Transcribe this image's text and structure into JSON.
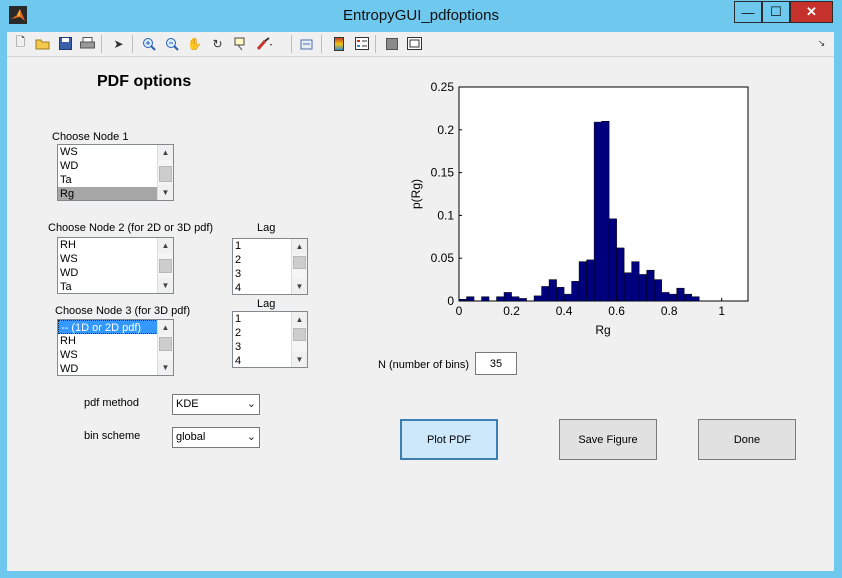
{
  "window": {
    "title": "EntropyGUI_pdfoptions",
    "minimize": "—",
    "maximize": "☐",
    "close": "✕"
  },
  "toolbar": {
    "icons": [
      "new-icon",
      "open-icon",
      "save-icon",
      "print-icon",
      "pointer-icon",
      "zoom-in-icon",
      "zoom-out-icon",
      "pan-icon",
      "rotate-icon",
      "data-cursor-icon",
      "brush-icon",
      "link-icon",
      "colorbar-icon",
      "legend-icon",
      "hide-plot-tools-icon",
      "show-plot-tools-icon",
      "dock-icon"
    ]
  },
  "panel": {
    "heading": "PDF options",
    "node1": {
      "label": "Choose Node 1",
      "items": [
        "WS",
        "WD",
        "Ta",
        "Rg"
      ],
      "selected_index": 3
    },
    "node2": {
      "label": "Choose Node  2 (for 2D or 3D pdf)",
      "items": [
        "RH",
        "WS",
        "WD",
        "Ta"
      ]
    },
    "lag1": {
      "label": "Lag",
      "items": [
        "1",
        "2",
        "3",
        "4"
      ]
    },
    "node3": {
      "label": "Choose Node 3 (for 3D pdf)",
      "items": [
        "-- (1D or 2D pdf)",
        "RH",
        "WS",
        "WD"
      ],
      "selected_index": 0
    },
    "lag2": {
      "label": "Lag",
      "items": [
        "1",
        "2",
        "3",
        "4"
      ]
    },
    "pdf_method": {
      "label": "pdf method",
      "value": "KDE"
    },
    "bin_scheme": {
      "label": "bin scheme",
      "value": "global"
    },
    "nbins": {
      "label": "N (number of bins)",
      "value": "35"
    },
    "buttons": {
      "plot": "Plot PDF",
      "save": "Save Figure",
      "done": "Done"
    }
  },
  "chart_data": {
    "type": "bar",
    "xlabel": "Rg",
    "ylabel": "p(Rg)",
    "xlim": [
      0,
      1.1
    ],
    "ylim": [
      0,
      0.25
    ],
    "xticks": [
      "0",
      "0.2",
      "0.4",
      "0.6",
      "0.8",
      "1"
    ],
    "yticks": [
      "0",
      "0.05",
      "0.1",
      "0.15",
      "0.2",
      "0.25"
    ],
    "bar_width": 0.0286,
    "bar_color": "#00007f",
    "x": [
      0.0143,
      0.0429,
      0.0714,
      0.1,
      0.1286,
      0.1571,
      0.1857,
      0.2143,
      0.2429,
      0.2714,
      0.3,
      0.3286,
      0.3571,
      0.3857,
      0.4143,
      0.4429,
      0.4714,
      0.5,
      0.5286,
      0.5571,
      0.5857,
      0.6143,
      0.6429,
      0.6714,
      0.7,
      0.7286,
      0.7571,
      0.7857,
      0.8143,
      0.8429,
      0.8714,
      0.9,
      0.9286,
      0.9571,
      0.9857
    ],
    "values": [
      0.002,
      0.005,
      0.0,
      0.005,
      0.0,
      0.005,
      0.01,
      0.005,
      0.003,
      0.0,
      0.006,
      0.017,
      0.025,
      0.016,
      0.008,
      0.023,
      0.046,
      0.048,
      0.209,
      0.21,
      0.096,
      0.062,
      0.033,
      0.046,
      0.031,
      0.036,
      0.025,
      0.01,
      0.008,
      0.015,
      0.008,
      0.005,
      0.0,
      0.0,
      0.0
    ]
  }
}
